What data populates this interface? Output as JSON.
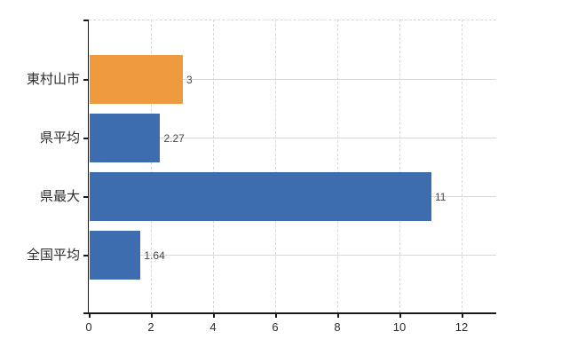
{
  "chart_data": {
    "type": "bar",
    "orientation": "horizontal",
    "title": "",
    "xlabel": "",
    "ylabel": "",
    "categories": [
      "東村山市",
      "県平均",
      "県最大",
      "全国平均"
    ],
    "values": [
      3,
      2.27,
      11,
      1.64
    ],
    "value_labels": [
      "3",
      "2.27",
      "11",
      "1.64"
    ],
    "bar_colors": [
      "#ee9a3e",
      "#3d6dae",
      "#3d6dae",
      "#3d6dae"
    ],
    "x_ticks": [
      0,
      2,
      4,
      6,
      8,
      10,
      12
    ],
    "x_tick_labels": [
      "0",
      "2",
      "4",
      "6",
      "8",
      "10",
      "12"
    ],
    "xlim": [
      0,
      13.1
    ],
    "grid": true,
    "legend_position": "none",
    "colors": {
      "highlight_bar": "#ee9a3e",
      "default_bar": "#3d6dae",
      "gridline": "#d8d8d8",
      "axis": "#1a1a1a",
      "value_label_text": "#474747",
      "tick_label_text": "#2b2b2b",
      "background": "#ffffff"
    }
  }
}
